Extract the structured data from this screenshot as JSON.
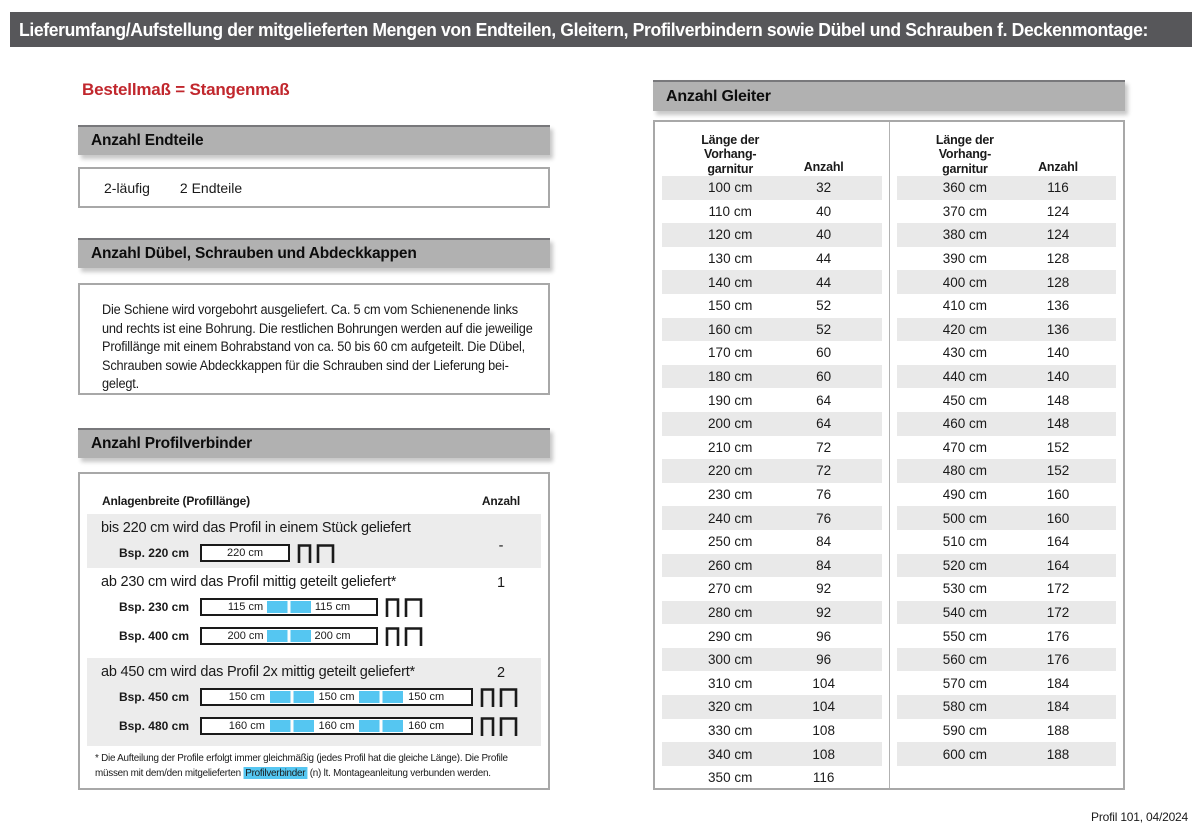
{
  "title": "Lieferumfang/Aufstellung der mitgelieferten Mengen von Endteilen, Gleitern, Profilverbindern sowie Dübel und Schrauben f. Deckenmontage:",
  "subtitle": "Bestellmaß = Stangenmaß",
  "colors": {
    "title_bar": "#57575a",
    "section_bar": "#b1b1b1",
    "accent_red": "#c1272d",
    "highlight_blue": "#55c6f1",
    "stripe_gray": "#e9e9e9"
  },
  "sections": {
    "endteile": {
      "heading": "Anzahl Endteile",
      "row": {
        "label": "2-läufig",
        "value": "2 Endteile"
      }
    },
    "duebel": {
      "heading": "Anzahl Dübel, Schrauben und Abdeckkappen",
      "text_lines": [
        "Die Schiene wird vorgebohrt ausgeliefert. Ca. 5 cm vom Schienenende links",
        "und rechts ist eine Bohrung. Die restlichen Bohrungen werden auf die jeweilige",
        "Profillänge mit einem Bohrabstand von ca. 50 bis 60 cm aufgeteilt. Die Dübel,",
        "Schrauben sowie Abdeckkappen für die Schrauben sind der Lieferung bei-",
        "gelegt."
      ]
    },
    "profilverbinder": {
      "heading": "Anzahl Profilverbinder",
      "col_left": "Anlagenbreite (Profillänge)",
      "col_right": "Anzahl",
      "rows": [
        {
          "text": "bis 220 cm wird das Profil in einem Stück geliefert",
          "anzahl": "-",
          "diagrams": [
            {
              "label": "Bsp. 220 cm",
              "segments": [
                "220 cm"
              ]
            }
          ]
        },
        {
          "text": "ab 230 cm wird das Profil mittig geteilt geliefert*",
          "anzahl": "1",
          "diagrams": [
            {
              "label": "Bsp. 230 cm",
              "segments": [
                "115 cm",
                "115 cm"
              ]
            },
            {
              "label": "Bsp. 400 cm",
              "segments": [
                "200 cm",
                "200 cm"
              ]
            }
          ]
        },
        {
          "text": "ab 450 cm wird das Profil 2x mittig geteilt geliefert*",
          "anzahl": "2",
          "diagrams": [
            {
              "label": "Bsp. 450 cm",
              "segments": [
                "150 cm",
                "150 cm",
                "150 cm"
              ]
            },
            {
              "label": "Bsp. 480 cm",
              "segments": [
                "160 cm",
                "160 cm",
                "160 cm"
              ]
            }
          ]
        }
      ],
      "footnote_line1": "* Die Aufteilung der Profile erfolgt immer gleichmäßig (jedes Profil hat die gleiche Länge). Die Profile",
      "footnote_line2_before": "müssen mit dem/den mitgelieferten ",
      "footnote_line2_highlight": "Profilverbinder",
      "footnote_line2_after": " (n) lt. Montageanleitung verbunden werden."
    },
    "gleiter": {
      "heading": "Anzahl Gleiter",
      "col_length": [
        "Länge der",
        "Vorhang-",
        "garnitur"
      ],
      "col_anzahl": "Anzahl",
      "left_rows": [
        [
          "100 cm",
          32
        ],
        [
          "110 cm",
          40
        ],
        [
          "120 cm",
          40
        ],
        [
          "130 cm",
          44
        ],
        [
          "140 cm",
          44
        ],
        [
          "150 cm",
          52
        ],
        [
          "160 cm",
          52
        ],
        [
          "170 cm",
          60
        ],
        [
          "180 cm",
          60
        ],
        [
          "190 cm",
          64
        ],
        [
          "200 cm",
          64
        ],
        [
          "210 cm",
          72
        ],
        [
          "220 cm",
          72
        ],
        [
          "230 cm",
          76
        ],
        [
          "240 cm",
          76
        ],
        [
          "250 cm",
          84
        ],
        [
          "260 cm",
          84
        ],
        [
          "270 cm",
          92
        ],
        [
          "280 cm",
          92
        ],
        [
          "290 cm",
          96
        ],
        [
          "300 cm",
          96
        ],
        [
          "310 cm",
          104
        ],
        [
          "320 cm",
          104
        ],
        [
          "330 cm",
          108
        ],
        [
          "340 cm",
          108
        ],
        [
          "350 cm",
          116
        ]
      ],
      "right_rows": [
        [
          "360 cm",
          116
        ],
        [
          "370 cm",
          124
        ],
        [
          "380 cm",
          124
        ],
        [
          "390 cm",
          128
        ],
        [
          "400 cm",
          128
        ],
        [
          "410 cm",
          136
        ],
        [
          "420 cm",
          136
        ],
        [
          "430 cm",
          140
        ],
        [
          "440 cm",
          140
        ],
        [
          "450 cm",
          148
        ],
        [
          "460 cm",
          148
        ],
        [
          "470 cm",
          152
        ],
        [
          "480 cm",
          152
        ],
        [
          "490 cm",
          160
        ],
        [
          "500 cm",
          160
        ],
        [
          "510 cm",
          164
        ],
        [
          "520 cm",
          164
        ],
        [
          "530 cm",
          172
        ],
        [
          "540 cm",
          172
        ],
        [
          "550 cm",
          176
        ],
        [
          "560 cm",
          176
        ],
        [
          "570 cm",
          184
        ],
        [
          "580 cm",
          184
        ],
        [
          "590 cm",
          188
        ],
        [
          "600 cm",
          188
        ]
      ]
    }
  },
  "footer": "Profil 101, 04/2024"
}
